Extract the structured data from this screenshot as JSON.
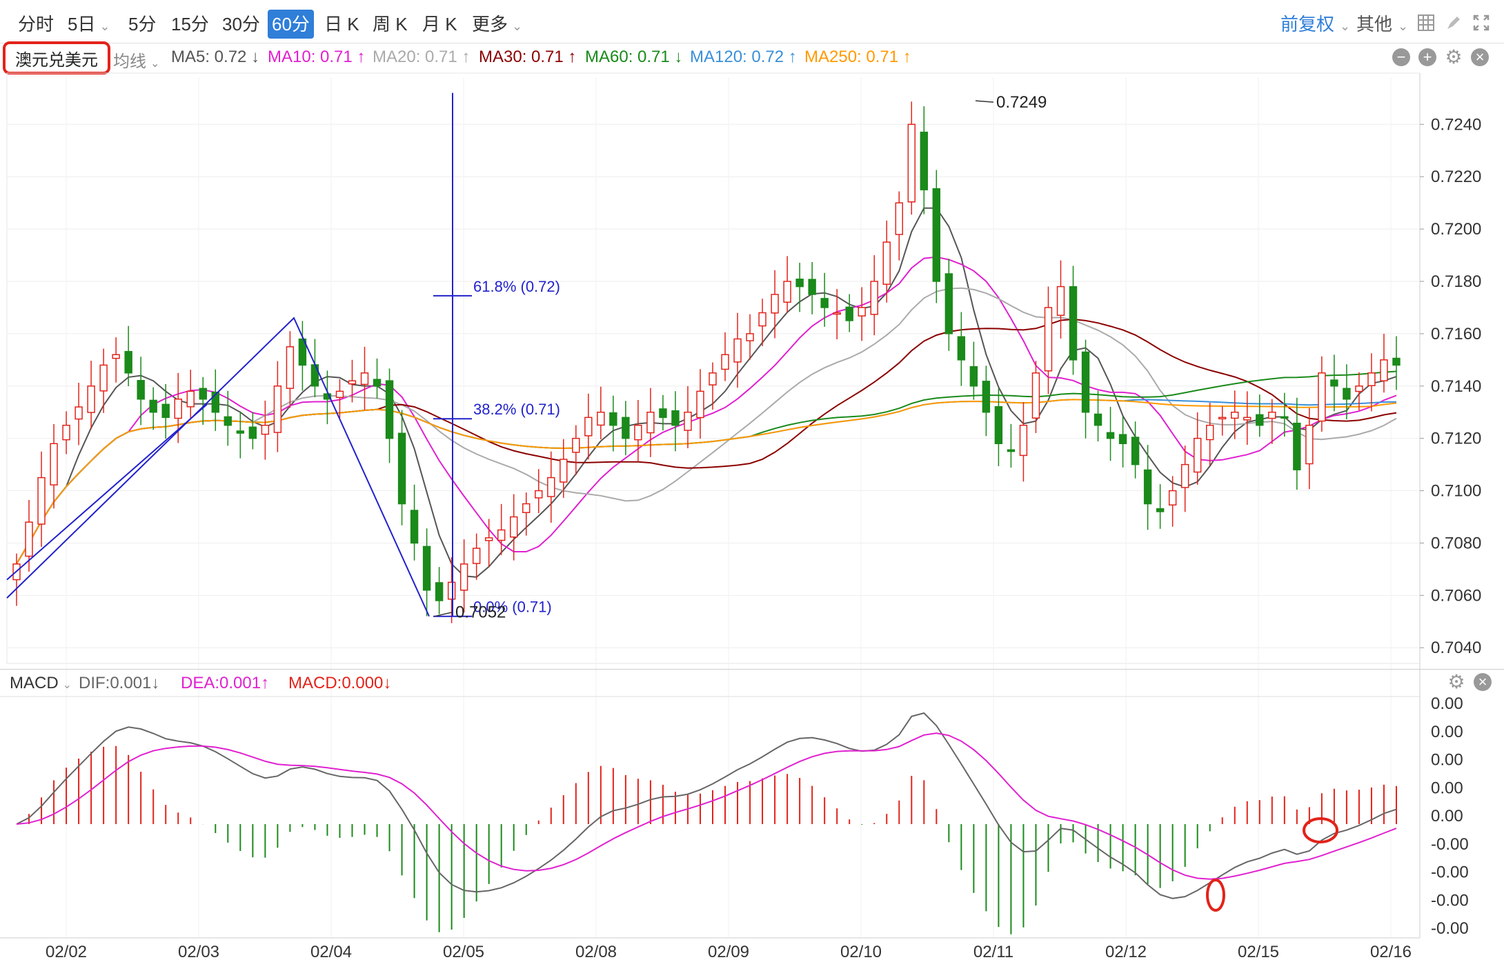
{
  "toolbar": {
    "periods": [
      "分时",
      "5日",
      "5分",
      "15分",
      "30分",
      "60分",
      "日 K",
      "周 K",
      "月 K",
      "更多"
    ],
    "active_period": "60分",
    "adjust": "前复权",
    "other": "其他"
  },
  "symbol": "澳元兑美元",
  "ma_legend": {
    "type_label": "均线",
    "items": [
      {
        "label": "MA5: 0.72",
        "arrow": "↓",
        "color": "#555555"
      },
      {
        "label": "MA10: 0.71",
        "arrow": "↑",
        "color": "#e020d0"
      },
      {
        "label": "MA20: 0.71",
        "arrow": "↑",
        "color": "#aaaaaa"
      },
      {
        "label": "MA30: 0.71",
        "arrow": "↑",
        "color": "#8b0000"
      },
      {
        "label": "MA60: 0.71",
        "arrow": "↓",
        "color": "#1a8a1a"
      },
      {
        "label": "MA120: 0.72",
        "arrow": "↑",
        "color": "#3a8fd8"
      },
      {
        "label": "MA250: 0.71",
        "arrow": "↑",
        "color": "#ff9900"
      }
    ]
  },
  "macd_legend": {
    "name": "MACD",
    "dif": "DIF:0.001↓",
    "dea": "DEA:0.001↑",
    "macd": "MACD:0.000↓"
  },
  "annotations": {
    "high_label": "0.7249",
    "low_label": "0.7052",
    "fib_618": "61.8% (0.72)",
    "fib_382": "38.2% (0.71)",
    "fib_0": "0.0% (0.71)"
  },
  "colors": {
    "up": "#e2231a",
    "down": "#1a8a1a",
    "fib": "#2222cc",
    "accent": "#2f7ed8",
    "highlight": "#e2231a"
  },
  "chart_data": {
    "type": "candlestick",
    "price_axis": {
      "ticks": [
        0.724,
        0.722,
        0.72,
        0.718,
        0.716,
        0.714,
        0.712,
        0.71,
        0.708,
        0.706,
        0.704
      ],
      "tick_labels": [
        "0.7240",
        "0.7220",
        "0.7200",
        "0.7180",
        "0.7160",
        "0.7140",
        "0.7120",
        "0.7100",
        "0.7080",
        "0.7060",
        "0.7040"
      ],
      "range": [
        0.7034,
        0.7258
      ]
    },
    "x_labels": [
      "02/02",
      "02/03",
      "02/04",
      "02/05",
      "02/08",
      "02/09",
      "02/10",
      "02/11",
      "02/12",
      "02/15",
      "02/16"
    ],
    "close": [
      0.7072,
      0.7088,
      0.7105,
      0.7118,
      0.7125,
      0.7132,
      0.714,
      0.7148,
      0.7152,
      0.7145,
      0.7135,
      0.713,
      0.7128,
      0.7135,
      0.7138,
      0.7135,
      0.713,
      0.7125,
      0.7122,
      0.712,
      0.7125,
      0.714,
      0.7155,
      0.7148,
      0.714,
      0.7135,
      0.7138,
      0.7142,
      0.7145,
      0.714,
      0.712,
      0.7095,
      0.708,
      0.7062,
      0.7058,
      0.7065,
      0.7072,
      0.7078,
      0.7082,
      0.7085,
      0.709,
      0.7095,
      0.71,
      0.7105,
      0.7112,
      0.712,
      0.7128,
      0.713,
      0.7125,
      0.712,
      0.7125,
      0.713,
      0.7128,
      0.7125,
      0.713,
      0.7138,
      0.7145,
      0.7152,
      0.7158,
      0.716,
      0.7168,
      0.7175,
      0.718,
      0.7178,
      0.7175,
      0.717,
      0.7168,
      0.7165,
      0.717,
      0.718,
      0.7195,
      0.721,
      0.724,
      0.7215,
      0.718,
      0.716,
      0.715,
      0.714,
      0.713,
      0.7118,
      0.7115,
      0.7125,
      0.7145,
      0.717,
      0.7178,
      0.715,
      0.713,
      0.7125,
      0.712,
      0.7118,
      0.711,
      0.7095,
      0.7092,
      0.71,
      0.711,
      0.712,
      0.7125,
      0.7128,
      0.713,
      0.7128,
      0.7125,
      0.713,
      0.7128,
      0.7108,
      0.7125,
      0.7145,
      0.714,
      0.7135,
      0.714,
      0.7145,
      0.715,
      0.7148
    ],
    "series": [
      {
        "name": "MA5",
        "last": 0.72
      },
      {
        "name": "MA10",
        "last": 0.71
      },
      {
        "name": "MA20",
        "last": 0.71
      },
      {
        "name": "MA30",
        "last": 0.71
      },
      {
        "name": "MA60",
        "last": 0.71
      },
      {
        "name": "MA120",
        "last": 0.72
      },
      {
        "name": "MA250",
        "last": 0.71
      }
    ],
    "high_marker": 0.7249,
    "low_marker": 0.7052,
    "macd_axis_labels": [
      "0.00",
      "0.00",
      "0.00",
      "0.00",
      "0.00",
      "-0.00",
      "-0.00",
      "-0.00",
      "-0.00"
    ]
  }
}
